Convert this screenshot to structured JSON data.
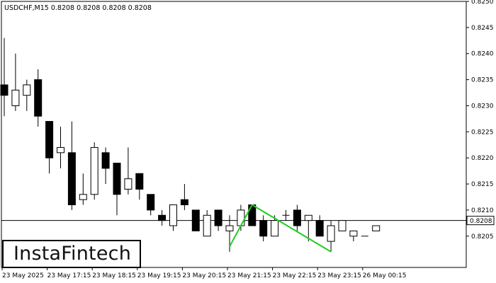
{
  "header": {
    "symbol": "USDCHF,M15",
    "ohlc": "0.8208 0.8208 0.8208 0.8208"
  },
  "current_price_label": "0.8208",
  "brand": {
    "logo_text": "InstaFintech"
  },
  "colors": {
    "background": "#ffffff",
    "axis": "#000000",
    "bull_fill": "#ffffff",
    "bear_fill": "#000000",
    "pattern_line": "#22cc22",
    "price_line": "#000000",
    "price_label_bg": "#ffffff"
  },
  "chart_data": {
    "type": "candlestick",
    "title": "USDCHF,M15",
    "y_axis": {
      "position": "right",
      "ylim": [
        0.8199,
        0.825
      ],
      "ticks": [
        "0.8250",
        "0.8245",
        "0.8240",
        "0.8235",
        "0.8230",
        "0.8225",
        "0.8220",
        "0.8215",
        "0.8210",
        "0.8205"
      ]
    },
    "x_axis": {
      "tick_labels": [
        {
          "label": "23 May 2025",
          "bar": 0
        },
        {
          "label": "23 May 17:15",
          "bar": 4
        },
        {
          "label": "23 May 18:15",
          "bar": 8
        },
        {
          "label": "23 May 19:15",
          "bar": 12
        },
        {
          "label": "23 May 20:15",
          "bar": 16
        },
        {
          "label": "23 May 21:15",
          "bar": 20
        },
        {
          "label": "23 May 22:15",
          "bar": 24
        },
        {
          "label": "23 May 23:15",
          "bar": 28
        },
        {
          "label": "26 May 00:15",
          "bar": 32
        }
      ]
    },
    "current_price": 0.8208,
    "candles": [
      {
        "o": 0.8234,
        "h": 0.8243,
        "l": 0.8228,
        "c": 0.8232
      },
      {
        "o": 0.823,
        "h": 0.824,
        "l": 0.8229,
        "c": 0.8233
      },
      {
        "o": 0.8232,
        "h": 0.8235,
        "l": 0.8229,
        "c": 0.8234
      },
      {
        "o": 0.8235,
        "h": 0.8237,
        "l": 0.8226,
        "c": 0.8228
      },
      {
        "o": 0.8227,
        "h": 0.8227,
        "l": 0.8217,
        "c": 0.822
      },
      {
        "o": 0.8221,
        "h": 0.8226,
        "l": 0.8218,
        "c": 0.8222
      },
      {
        "o": 0.8221,
        "h": 0.8227,
        "l": 0.821,
        "c": 0.8211
      },
      {
        "o": 0.8212,
        "h": 0.8217,
        "l": 0.8211,
        "c": 0.8213
      },
      {
        "o": 0.8213,
        "h": 0.8223,
        "l": 0.8212,
        "c": 0.8222
      },
      {
        "o": 0.8221,
        "h": 0.8222,
        "l": 0.8215,
        "c": 0.8218
      },
      {
        "o": 0.8219,
        "h": 0.8219,
        "l": 0.8209,
        "c": 0.8213
      },
      {
        "o": 0.8214,
        "h": 0.8222,
        "l": 0.8213,
        "c": 0.8216
      },
      {
        "o": 0.8217,
        "h": 0.8217,
        "l": 0.8212,
        "c": 0.8214
      },
      {
        "o": 0.8213,
        "h": 0.8213,
        "l": 0.8209,
        "c": 0.821
      },
      {
        "o": 0.8209,
        "h": 0.821,
        "l": 0.8207,
        "c": 0.8208
      },
      {
        "o": 0.8207,
        "h": 0.8211,
        "l": 0.8206,
        "c": 0.8211
      },
      {
        "o": 0.8212,
        "h": 0.8215,
        "l": 0.821,
        "c": 0.8211
      },
      {
        "o": 0.821,
        "h": 0.821,
        "l": 0.8206,
        "c": 0.8206
      },
      {
        "o": 0.8205,
        "h": 0.821,
        "l": 0.8205,
        "c": 0.8209
      },
      {
        "o": 0.821,
        "h": 0.821,
        "l": 0.8206,
        "c": 0.8207
      },
      {
        "o": 0.8206,
        "h": 0.8209,
        "l": 0.8202,
        "c": 0.8207
      },
      {
        "o": 0.8207,
        "h": 0.8211,
        "l": 0.8206,
        "c": 0.821
      },
      {
        "o": 0.8211,
        "h": 0.8211,
        "l": 0.8207,
        "c": 0.8207
      },
      {
        "o": 0.8208,
        "h": 0.8209,
        "l": 0.8204,
        "c": 0.8205
      },
      {
        "o": 0.8205,
        "h": 0.8209,
        "l": 0.8205,
        "c": 0.8208
      },
      {
        "o": 0.8209,
        "h": 0.821,
        "l": 0.8208,
        "c": 0.8209
      },
      {
        "o": 0.821,
        "h": 0.8211,
        "l": 0.8206,
        "c": 0.8207
      },
      {
        "o": 0.8208,
        "h": 0.8209,
        "l": 0.8204,
        "c": 0.8209
      },
      {
        "o": 0.8208,
        "h": 0.8209,
        "l": 0.8205,
        "c": 0.8205
      },
      {
        "o": 0.8204,
        "h": 0.8208,
        "l": 0.8202,
        "c": 0.8207
      },
      {
        "o": 0.8206,
        "h": 0.8208,
        "l": 0.8206,
        "c": 0.8208
      },
      {
        "o": 0.8205,
        "h": 0.8206,
        "l": 0.8204,
        "c": 0.8206
      },
      {
        "o": 0.8205,
        "h": 0.8205,
        "l": 0.8205,
        "c": 0.8205
      },
      {
        "o": 0.8206,
        "h": 0.8207,
        "l": 0.8206,
        "c": 0.8207
      }
    ],
    "pattern_lines": [
      {
        "from": {
          "bar": 20,
          "price": 0.8203
        },
        "to": {
          "bar": 22,
          "price": 0.8211
        }
      },
      {
        "from": {
          "bar": 22,
          "price": 0.8211
        },
        "to": {
          "bar": 29,
          "price": 0.8202
        }
      }
    ]
  }
}
